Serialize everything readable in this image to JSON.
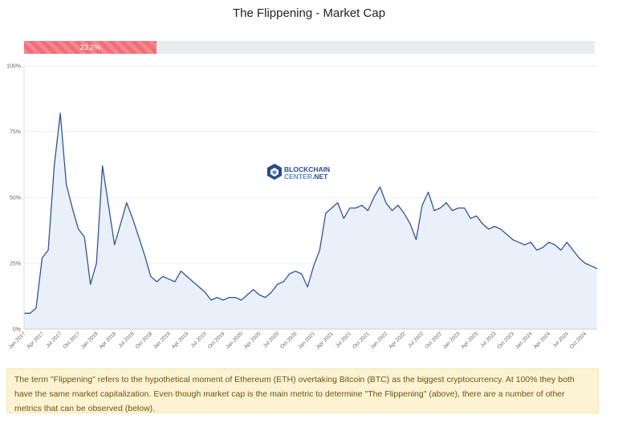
{
  "title": "The Flippening - Market Cap",
  "progress": {
    "value": 0.232,
    "label": "23.2%",
    "color": "#f26d76"
  },
  "watermark": {
    "line1": "BLOCKCHAIN",
    "line2": "CENTER",
    "line3": ".NET",
    "icon": "blockchaincenter-logo-icon"
  },
  "info_text": "The term \"Flippening\" refers to the hypothetical moment of Ethereum (ETH) overtaking Bitcoin (BTC) as the biggest cryptocurrency. At 100% they both have the same market capitalization. Even though market cap is the main metric to determine \"The Flippening\" (above), there are a number of other metrics that can be observed (below).",
  "colors": {
    "line": "#2f5597",
    "area": "#e8eef8",
    "grid": "#eeeeee"
  },
  "chart_data": {
    "type": "area",
    "title": "",
    "xlabel": "",
    "ylabel": "",
    "ylim": [
      0,
      100
    ],
    "y_ticks": [
      "0%",
      "25%",
      "50%",
      "75%",
      "100%"
    ],
    "x_ticks": [
      "Jan 2017",
      "Apr 2017",
      "Jul 2017",
      "Oct 2017",
      "Jan 2018",
      "Apr 2018",
      "Jul 2018",
      "Oct 2018",
      "Jan 2019",
      "Apr 2019",
      "Jul 2019",
      "Oct 2019",
      "Jan 2020",
      "Apr 2020",
      "Jul 2020",
      "Oct 2020",
      "Jan 2021",
      "Apr 2021",
      "Jul 2021",
      "Oct 2021",
      "Jan 2022",
      "Apr 2022",
      "Jul 2022",
      "Oct 2022",
      "Jan 2023",
      "Apr 2023",
      "Jul 2023",
      "Oct 2023",
      "Jan 2024",
      "Apr 2024",
      "Jul 2024",
      "Oct 2024"
    ],
    "grid": true,
    "series": [
      {
        "x": [
          "2017-01",
          "2017-02",
          "2017-03",
          "2017-04",
          "2017-05",
          "2017-06",
          "2017-07",
          "2017-08",
          "2017-09",
          "2017-10",
          "2017-11",
          "2017-12",
          "2018-01",
          "2018-02",
          "2018-03",
          "2018-04",
          "2018-05",
          "2018-06",
          "2018-07",
          "2018-08",
          "2018-09",
          "2018-10",
          "2018-11",
          "2018-12",
          "2019-01",
          "2019-02",
          "2019-03",
          "2019-04",
          "2019-05",
          "2019-06",
          "2019-07",
          "2019-08",
          "2019-09",
          "2019-10",
          "2019-11",
          "2019-12",
          "2020-01",
          "2020-02",
          "2020-03",
          "2020-04",
          "2020-05",
          "2020-06",
          "2020-07",
          "2020-08",
          "2020-09",
          "2020-10",
          "2020-11",
          "2020-12",
          "2021-01",
          "2021-02",
          "2021-03",
          "2021-04",
          "2021-05",
          "2021-06",
          "2021-07",
          "2021-08",
          "2021-09",
          "2021-10",
          "2021-11",
          "2021-12",
          "2022-01",
          "2022-02",
          "2022-03",
          "2022-04",
          "2022-05",
          "2022-06",
          "2022-07",
          "2022-08",
          "2022-09",
          "2022-10",
          "2022-11",
          "2022-12",
          "2023-01",
          "2023-02",
          "2023-03",
          "2023-04",
          "2023-05",
          "2023-06",
          "2023-07",
          "2023-08",
          "2023-09",
          "2023-10",
          "2023-11",
          "2023-12",
          "2024-01",
          "2024-02",
          "2024-03",
          "2024-04",
          "2024-05",
          "2024-06",
          "2024-07",
          "2024-08",
          "2024-09",
          "2024-10",
          "2024-11",
          "2024-12"
        ],
        "values": [
          6,
          6,
          8,
          27,
          30,
          62,
          82,
          55,
          46,
          38,
          35,
          17,
          25,
          62,
          47,
          32,
          40,
          48,
          42,
          35,
          28,
          20,
          18,
          20,
          19,
          18,
          22,
          20,
          18,
          16,
          14,
          11,
          12,
          11,
          12,
          12,
          11,
          13,
          15,
          13,
          12,
          14,
          17,
          18,
          21,
          22,
          21,
          16,
          24,
          30,
          44,
          46,
          48,
          42,
          46,
          46,
          47,
          45,
          50,
          54,
          48,
          45,
          47,
          44,
          40,
          34,
          47,
          52,
          45,
          46,
          48,
          45,
          46,
          46,
          42,
          43,
          40,
          38,
          39,
          38,
          36,
          34,
          33,
          32,
          33,
          30,
          31,
          33,
          32,
          30,
          33,
          30,
          27,
          25,
          24,
          23
        ]
      }
    ]
  }
}
